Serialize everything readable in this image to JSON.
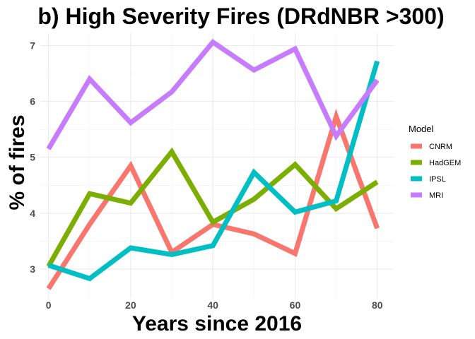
{
  "chart_data": {
    "type": "line",
    "title": "b) High Severity Fires (DRdNBR >300)",
    "xlabel": "Years since 2016",
    "ylabel": "% of fires",
    "x": [
      0,
      10,
      20,
      30,
      40,
      50,
      60,
      70,
      80
    ],
    "xticks": [
      "0",
      "20",
      "40",
      "60",
      "80"
    ],
    "yticks": [
      "3",
      "4",
      "5",
      "6",
      "7"
    ],
    "xlim": [
      -2,
      84
    ],
    "ylim": [
      2.47,
      7.22
    ],
    "grid": true,
    "legend": {
      "title": "Model",
      "placement": "right"
    },
    "series": [
      {
        "name": "CNRM",
        "color": "#F8766D",
        "values": [
          2.65,
          3.8,
          4.85,
          3.3,
          3.8,
          3.63,
          3.28,
          5.73,
          3.73
        ]
      },
      {
        "name": "HadGEM",
        "color": "#7CAE00",
        "values": [
          3.05,
          4.35,
          4.18,
          5.1,
          3.84,
          4.25,
          4.87,
          4.08,
          4.56
        ]
      },
      {
        "name": "IPSL",
        "color": "#00BFC4",
        "values": [
          3.07,
          2.83,
          3.38,
          3.26,
          3.42,
          4.73,
          4.02,
          4.22,
          6.72
        ]
      },
      {
        "name": "MRI",
        "color": "#C77CFF",
        "values": [
          5.15,
          6.4,
          5.62,
          6.17,
          7.06,
          6.56,
          6.94,
          5.38,
          6.38
        ]
      }
    ]
  }
}
